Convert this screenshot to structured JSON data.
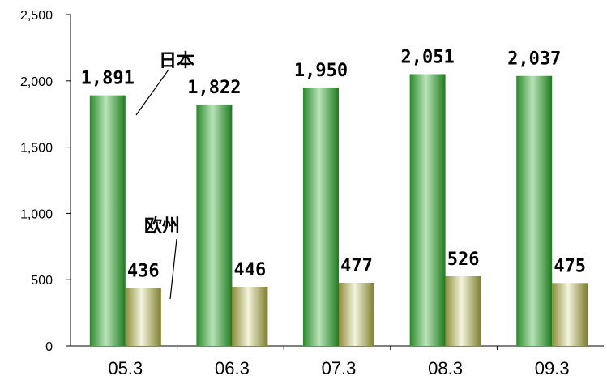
{
  "chart_data": {
    "type": "bar",
    "categories": [
      "05.3",
      "06.3",
      "07.3",
      "08.3",
      "09.3"
    ],
    "series": [
      {
        "name": "日本",
        "values": [
          1891,
          1822,
          1950,
          2051,
          2037
        ],
        "labels": [
          "1,891",
          "1,822",
          "1,950",
          "2,051",
          "2,037"
        ],
        "color": "#2e8b2e"
      },
      {
        "name": "欧州",
        "values": [
          436,
          446,
          477,
          526,
          475
        ],
        "labels": [
          "436",
          "446",
          "477",
          "526",
          "475"
        ],
        "color": "#e6e6c4"
      }
    ],
    "ylim": [
      0,
      2500
    ],
    "yticks": [
      0,
      500,
      1000,
      1500,
      2000,
      2500
    ],
    "ytick_labels": [
      "0",
      "500",
      "1,000",
      "1,500",
      "2,000",
      "2,500"
    ],
    "grid": false,
    "title": "",
    "xlabel": "",
    "ylabel": ""
  }
}
